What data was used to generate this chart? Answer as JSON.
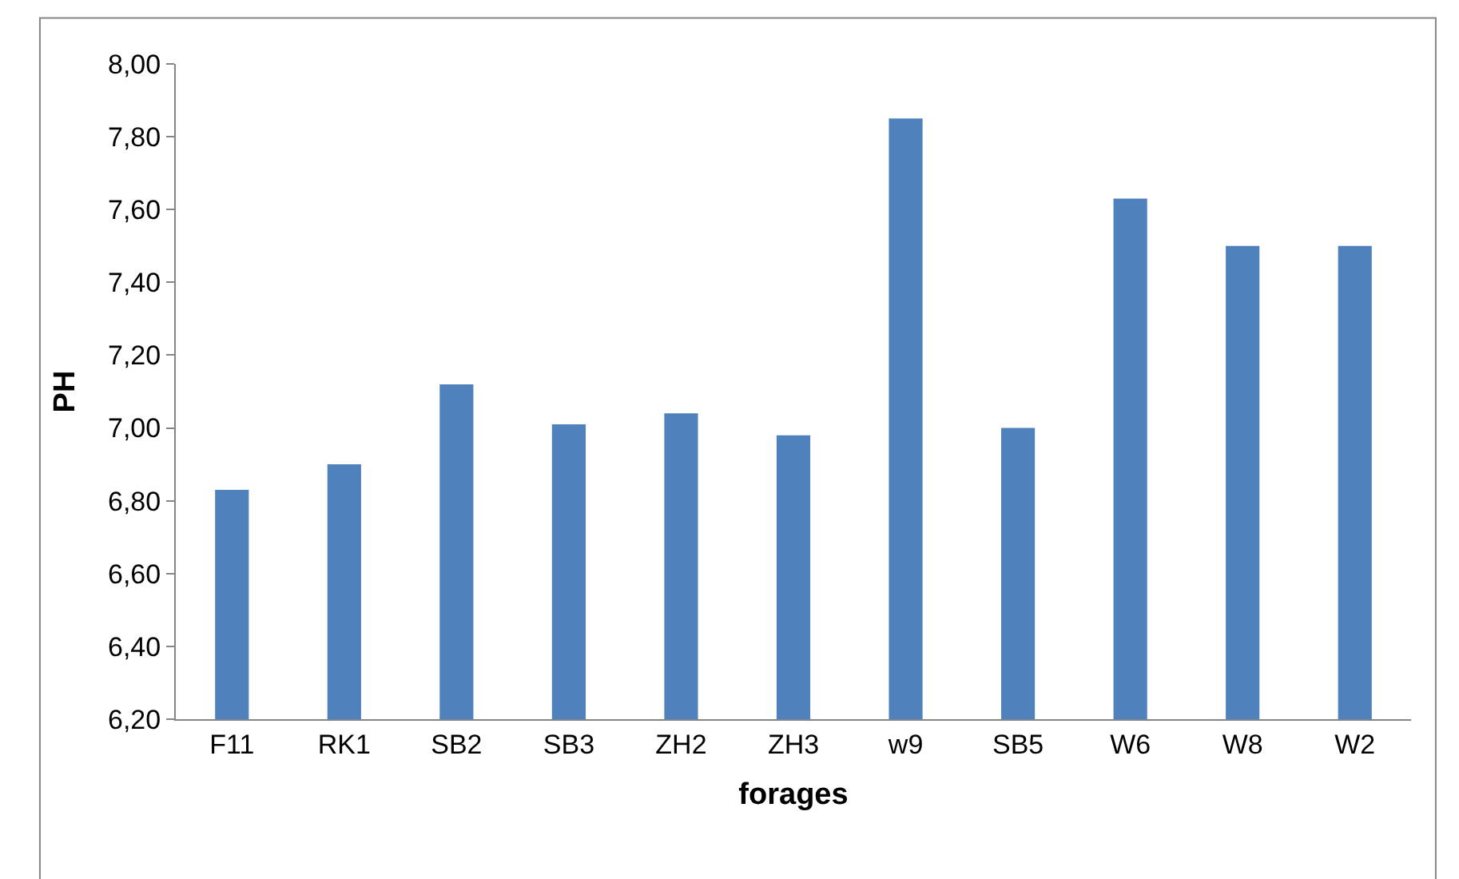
{
  "chart_data": {
    "type": "bar",
    "xlabel": "forages",
    "ylabel": "PH",
    "categories": [
      "F11",
      "RK1",
      "SB2",
      "SB3",
      "ZH2",
      "ZH3",
      "w9",
      "SB5",
      "W6",
      "W8",
      "W2"
    ],
    "values": [
      6.83,
      6.9,
      7.12,
      7.01,
      7.04,
      6.98,
      7.85,
      7.0,
      7.63,
      7.5,
      7.5
    ],
    "color": "#4f81bd",
    "ylim": [
      6.2,
      8.0
    ],
    "yticks": [
      {
        "value": 6.2,
        "label": "6,20"
      },
      {
        "value": 6.4,
        "label": "6,40"
      },
      {
        "value": 6.6,
        "label": "6,60"
      },
      {
        "value": 6.8,
        "label": "6,80"
      },
      {
        "value": 7.0,
        "label": "7,00"
      },
      {
        "value": 7.2,
        "label": "7,20"
      },
      {
        "value": 7.4,
        "label": "7,40"
      },
      {
        "value": 7.6,
        "label": "7,60"
      },
      {
        "value": 7.8,
        "label": "7,80"
      },
      {
        "value": 8.0,
        "label": "8,00"
      }
    ],
    "grid": false,
    "legend": false
  }
}
